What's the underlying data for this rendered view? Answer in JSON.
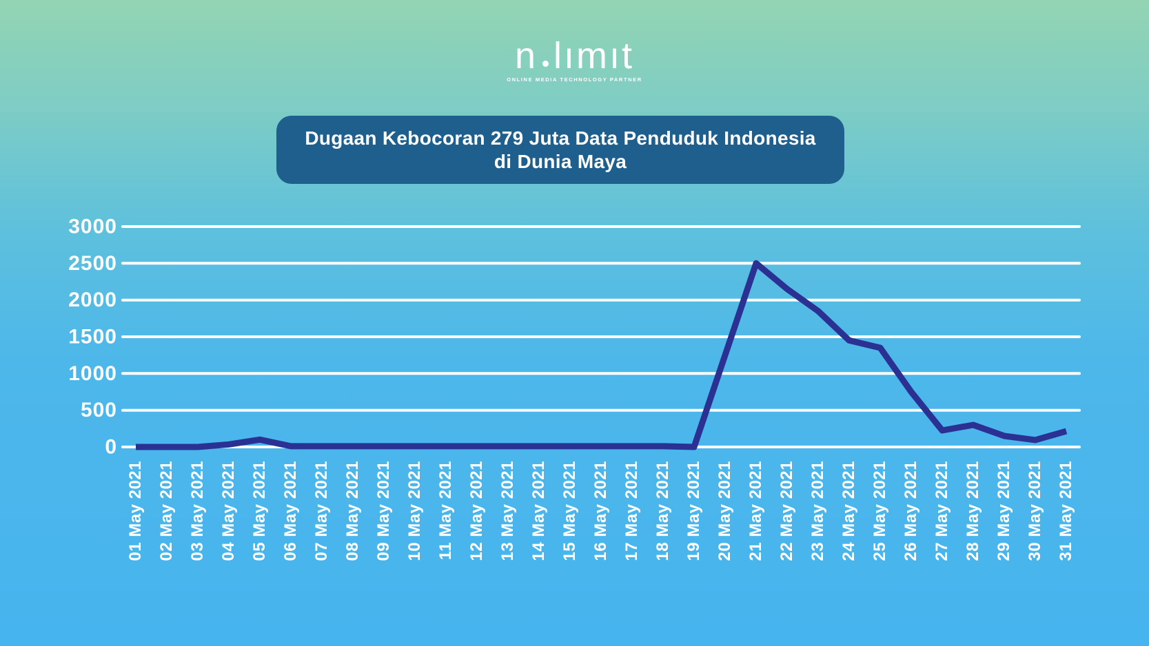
{
  "logo": {
    "brand_pre": "n",
    "brand_post": "lımıt",
    "tagline": "ONLINE MEDIA TECHNOLOGY PARTNER"
  },
  "title": {
    "line1": "Dugaan Kebocoran 279 Juta Data Penduduk Indonesia",
    "line2": "di Dunia Maya"
  },
  "theme": {
    "background_top": "#93d4b3",
    "background_bottom": "#46b4ee",
    "title_box": "#1f5f8e",
    "line_color": "#2b3192",
    "grid_color": "#ffffff",
    "text_color": "#ffffff"
  },
  "chart_data": {
    "type": "line",
    "title": "Dugaan Kebocoran 279 Juta Data Penduduk Indonesia di Dunia Maya",
    "xlabel": "",
    "ylabel": "",
    "ylim": [
      0,
      3000
    ],
    "yticks": [
      0,
      500,
      1000,
      1500,
      2000,
      2500,
      3000
    ],
    "grid": "horizontal",
    "legend": "none",
    "categories": [
      "01 May 2021",
      "02 May 2021",
      "03 May 2021",
      "04 May 2021",
      "05 May 2021",
      "06 May 2021",
      "07 May 2021",
      "08 May 2021",
      "09 May 2021",
      "10 May 2021",
      "11 May 2021",
      "12 May 2021",
      "13 May 2021",
      "14 May 2021",
      "15 May 2021",
      "16 May 2021",
      "17 May 2021",
      "18 May 2021",
      "19 May 2021",
      "20 May 2021",
      "21 May 2021",
      "22 May 2021",
      "23 May 2021",
      "24 May 2021",
      "25 May 2021",
      "26 May 2021",
      "27 May 2021",
      "28 May 2021",
      "29 May 2021",
      "30 May 2021",
      "31 May 2021"
    ],
    "values": [
      0,
      0,
      0,
      35,
      100,
      10,
      10,
      10,
      10,
      10,
      10,
      10,
      10,
      10,
      10,
      10,
      10,
      10,
      0,
      1250,
      2500,
      2150,
      1850,
      1450,
      1350,
      750,
      225,
      300,
      150,
      95,
      215
    ]
  }
}
